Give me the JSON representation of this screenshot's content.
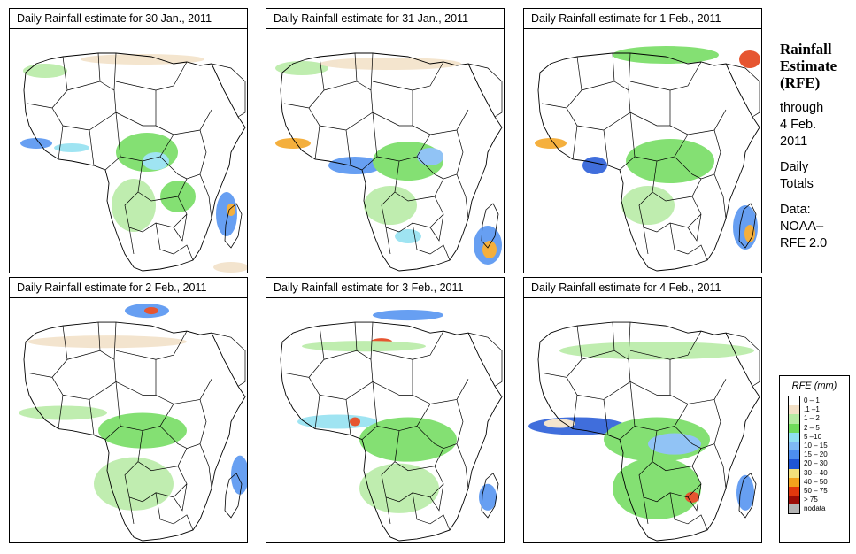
{
  "panels": [
    {
      "title": "Daily Rainfall estimate for  30 Jan., 2011"
    },
    {
      "title": "Daily Rainfall estimate for  31 Jan., 2011"
    },
    {
      "title": "Daily Rainfall estimate for  1 Feb., 2011"
    },
    {
      "title": "Daily Rainfall estimate for  2 Feb., 2011"
    },
    {
      "title": "Daily Rainfall estimate for  3 Feb., 2011"
    },
    {
      "title": "Daily Rainfall estimate for  4 Feb., 2011"
    }
  ],
  "side": {
    "title_line1": "Rainfall",
    "title_line2": "Estimate",
    "title_line3": "(RFE)",
    "through": "through",
    "date_line1": "4 Feb.",
    "date_line2": "2011",
    "daily_line1": "Daily",
    "daily_line2": "Totals",
    "data_label": "Data:",
    "source_line1": "NOAA–",
    "source_line2": "RFE 2.0"
  },
  "legend": {
    "title": "RFE (mm)",
    "items": [
      {
        "label": "0 – 1",
        "color": "#ffffff"
      },
      {
        "label": ".1 –1",
        "color": "#f2e0c6"
      },
      {
        "label": "1 – 2",
        "color": "#b5eaa2"
      },
      {
        "label": "2 – 5",
        "color": "#6fdb5b"
      },
      {
        "label": "5 –10",
        "color": "#8fe0f0"
      },
      {
        "label": "10 – 15",
        "color": "#7eb9f4"
      },
      {
        "label": "15 – 20",
        "color": "#4d8ff0"
      },
      {
        "label": "20 – 30",
        "color": "#1f55d6"
      },
      {
        "label": "30 – 40",
        "color": "#f3e07a"
      },
      {
        "label": "40 – 50",
        "color": "#f3a21c"
      },
      {
        "label": "50 – 75",
        "color": "#e2380d"
      },
      {
        "label": "> 75",
        "color": "#9c0c06"
      },
      {
        "label": "nodata",
        "color": "#b3b3b3"
      }
    ]
  }
}
